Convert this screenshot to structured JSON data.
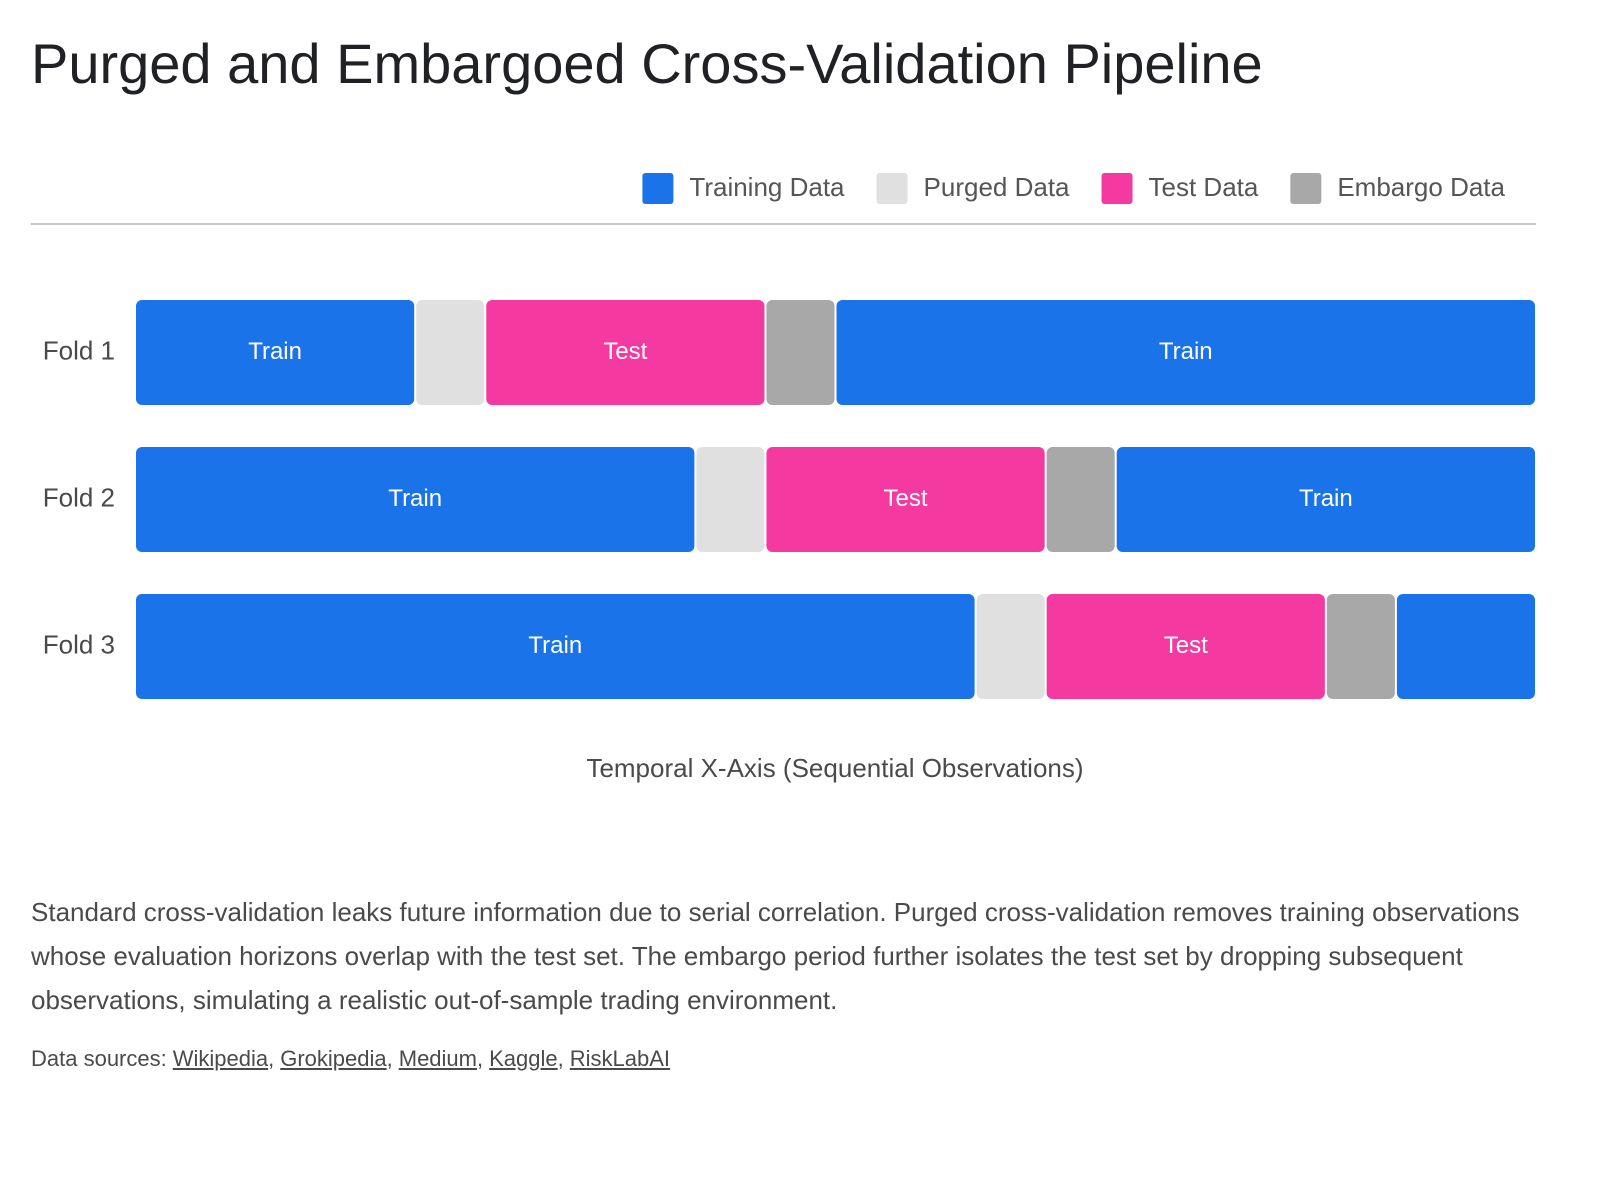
{
  "chart_data": {
    "type": "segmented-bar",
    "title": "Purged and Embargoed Cross-Validation Pipeline",
    "legend": [
      {
        "name": "Training Data",
        "color": "#1a73e8"
      },
      {
        "name": "Purged Data",
        "color": "#e0e0e0"
      },
      {
        "name": "Test Data",
        "color": "#f439a0"
      },
      {
        "name": "Embargo Data",
        "color": "#a8a8a8"
      }
    ],
    "rows": [
      {
        "name": "Fold 1",
        "segments": [
          {
            "legend": 0,
            "value": 4,
            "label": "Train"
          },
          {
            "legend": 1,
            "value": 1,
            "label": null
          },
          {
            "legend": 2,
            "value": 4,
            "label": "Test"
          },
          {
            "legend": 3,
            "value": 1,
            "label": null
          },
          {
            "legend": 0,
            "value": 10,
            "label": "Train"
          }
        ]
      },
      {
        "name": "Fold 2",
        "segments": [
          {
            "legend": 0,
            "value": 8,
            "label": "Train"
          },
          {
            "legend": 1,
            "value": 1,
            "label": null
          },
          {
            "legend": 2,
            "value": 4,
            "label": "Test"
          },
          {
            "legend": 3,
            "value": 1,
            "label": null
          },
          {
            "legend": 0,
            "value": 6,
            "label": "Train"
          }
        ]
      },
      {
        "name": "Fold 3",
        "segments": [
          {
            "legend": 0,
            "value": 12,
            "label": "Train"
          },
          {
            "legend": 1,
            "value": 1,
            "label": null
          },
          {
            "legend": 2,
            "value": 4,
            "label": "Test"
          },
          {
            "legend": 3,
            "value": 1,
            "label": null
          },
          {
            "legend": 0,
            "value": 2,
            "label": null
          }
        ]
      }
    ],
    "xlabel": "Temporal X-Axis (Sequential Observations)"
  },
  "description": "Standard cross-validation leaks future information due to serial correlation. Purged cross-validation removes training observations whose evaluation horizons overlap with the test set. The embargo period further isolates the test set by dropping subsequent observations, simulating a realistic out-of-sample trading environment.",
  "sources": {
    "label": "Data sources:",
    "links": [
      "Wikipedia",
      "Grokipedia",
      "Medium",
      "Kaggle",
      "RiskLabAI"
    ]
  }
}
